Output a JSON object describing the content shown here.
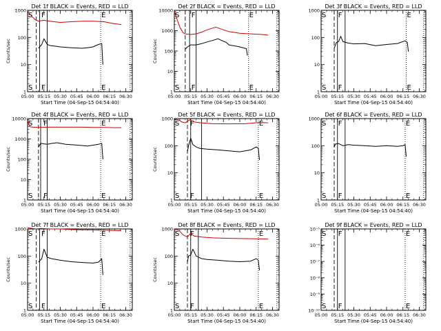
{
  "figure": {
    "background": "#ffffff",
    "ink_color": "#000000",
    "lld_color": "#cc0000"
  },
  "chart_data": [
    {
      "type": "line",
      "title": "Det 1f BLACK = Events, RED = LLD",
      "ylabel": "Counts/sec",
      "xlabel": "Start Time (04-Sep-15 04:54:40)",
      "yscale": "log",
      "ylim": [
        1,
        1000
      ],
      "xlim": [
        "05:00",
        "06:36"
      ],
      "x_ticks": [
        "05:00",
        "05:15",
        "05:30",
        "05:45",
        "06:00",
        "06:15",
        "06:30"
      ],
      "y_tick_labels": [
        "1",
        "10",
        "100",
        "1000"
      ],
      "series": [
        {
          "name": "Events",
          "color": "#000000",
          "x": [
            "05:10",
            "05:13",
            "05:15",
            "05:18",
            "05:21",
            "05:25",
            "05:30",
            "05:40",
            "05:50",
            "05:55",
            "06:00",
            "06:05",
            "06:08",
            "06:09"
          ],
          "values": [
            40,
            55,
            90,
            55,
            50,
            48,
            45,
            42,
            40,
            42,
            45,
            55,
            60,
            10
          ]
        },
        {
          "name": "LLD",
          "color": "#cc0000",
          "x": [
            "05:00",
            "05:04",
            "05:07",
            "05:10",
            "05:13",
            "05:15",
            "05:20",
            "05:30",
            "05:40",
            "05:50",
            "06:00",
            "06:10",
            "06:20",
            "06:26"
          ],
          "values": [
            900,
            600,
            450,
            400,
            420,
            430,
            400,
            360,
            380,
            400,
            400,
            380,
            320,
            300
          ]
        }
      ],
      "vlines": [
        {
          "x": "05:08",
          "style": "long-dash"
        },
        {
          "x": "05:11",
          "style": "solid"
        },
        {
          "x": "05:18",
          "style": "solid"
        },
        {
          "x": "06:07",
          "style": "dotted"
        },
        {
          "x": "06:34",
          "style": "dotted"
        }
      ],
      "markers": [
        {
          "label": "S",
          "x": "05:00"
        },
        {
          "label": "F",
          "x": "05:12"
        },
        {
          "label": "E",
          "x": "06:07"
        }
      ]
    },
    {
      "type": "line",
      "title": "Det 2f BLACK = Events, RED = LLD",
      "ylabel": "Counts/sec",
      "xlabel": "Start Time (04-Sep-15 04:54:40)",
      "yscale": "log",
      "ylim": [
        1,
        10000
      ],
      "xlim": [
        "05:00",
        "06:36"
      ],
      "x_ticks": [
        "05:00",
        "05:15",
        "05:30",
        "05:45",
        "06:00",
        "06:15",
        "06:30"
      ],
      "y_tick_labels": [
        "1",
        "10",
        "100",
        "1000",
        "10000"
      ],
      "series": [
        {
          "name": "Events",
          "color": "#000000",
          "x": [
            "05:10",
            "05:12",
            "05:15",
            "05:20",
            "05:25",
            "05:30",
            "05:35",
            "05:40",
            "05:45",
            "05:48",
            "05:50",
            "05:55",
            "06:00",
            "06:06",
            "06:07"
          ],
          "values": [
            120,
            160,
            200,
            200,
            230,
            280,
            330,
            400,
            300,
            260,
            200,
            180,
            160,
            130,
            60
          ]
        },
        {
          "name": "LLD",
          "color": "#cc0000",
          "x": [
            "05:00",
            "05:03",
            "05:05",
            "05:08",
            "05:10",
            "05:15",
            "05:20",
            "05:25",
            "05:30",
            "05:38",
            "05:45",
            "05:50",
            "06:00",
            "06:10",
            "06:20",
            "06:26"
          ],
          "values": [
            9000,
            3000,
            1500,
            800,
            700,
            650,
            700,
            850,
            1100,
            1500,
            1100,
            900,
            750,
            700,
            650,
            600
          ]
        }
      ],
      "vlines": [
        {
          "x": "05:10",
          "style": "long-dash"
        },
        {
          "x": "05:14",
          "style": "solid"
        },
        {
          "x": "05:20",
          "style": "solid"
        },
        {
          "x": "06:08",
          "style": "dotted"
        },
        {
          "x": "06:34",
          "style": "dotted"
        }
      ],
      "markers": [
        {
          "label": "S",
          "x": "05:00"
        },
        {
          "label": "F",
          "x": "05:15"
        },
        {
          "label": "E",
          "x": "06:08"
        }
      ]
    },
    {
      "type": "line",
      "title": "Det 3f BLACK = Events, RED = LLD",
      "ylabel": "",
      "xlabel": "Start Time (04-Sep-15 04:54:40)",
      "yscale": "log",
      "ylim": [
        1,
        1000
      ],
      "xlim": [
        "05:00",
        "06:36"
      ],
      "x_ticks": [
        "05:00",
        "05:15",
        "05:30",
        "05:45",
        "06:00",
        "06:15",
        "06:30"
      ],
      "y_tick_labels": [
        "1",
        "10",
        "100",
        "1000"
      ],
      "series": [
        {
          "name": "Events",
          "color": "#000000",
          "x": [
            "05:12",
            "05:14",
            "05:16",
            "05:18",
            "05:20",
            "05:25",
            "05:30",
            "05:40",
            "05:50",
            "06:00",
            "06:10",
            "06:17",
            "06:19",
            "06:20"
          ],
          "values": [
            40,
            65,
            70,
            110,
            70,
            62,
            58,
            60,
            50,
            55,
            60,
            75,
            65,
            30
          ]
        }
      ],
      "vlines": [
        {
          "x": "05:12",
          "style": "long-dash"
        },
        {
          "x": "05:15",
          "style": "solid"
        },
        {
          "x": "05:22",
          "style": "solid"
        },
        {
          "x": "06:18",
          "style": "dotted"
        },
        {
          "x": "06:34",
          "style": "dotted"
        }
      ],
      "markers": [
        {
          "label": "S",
          "x": "05:00"
        },
        {
          "label": "F",
          "x": "05:15"
        },
        {
          "label": "E",
          "x": "06:18"
        }
      ]
    },
    {
      "type": "line",
      "title": "Det 4f BLACK = Events, RED = LLD",
      "ylabel": "Counts/sec",
      "xlabel": "Start Time (04-Sep-15 04:54:40)",
      "yscale": "log",
      "ylim": [
        1,
        10000
      ],
      "xlim": [
        "05:00",
        "06:36"
      ],
      "x_ticks": [
        "05:00",
        "05:15",
        "05:30",
        "05:45",
        "06:00",
        "06:15",
        "06:30"
      ],
      "y_tick_labels": [
        "1",
        "10",
        "100",
        "1000",
        "10000"
      ],
      "series": [
        {
          "name": "Events",
          "color": "#000000",
          "x": [
            "05:10",
            "05:12",
            "05:18",
            "05:22",
            "05:27",
            "05:35",
            "05:45",
            "05:55",
            "06:05",
            "06:08",
            "06:09"
          ],
          "values": [
            400,
            600,
            550,
            600,
            650,
            550,
            500,
            450,
            550,
            600,
            100
          ]
        },
        {
          "name": "LLD",
          "color": "#cc0000",
          "x": [
            "05:00",
            "05:02",
            "05:05",
            "05:10",
            "05:20",
            "05:30",
            "05:40",
            "05:50",
            "06:00",
            "06:10",
            "06:20",
            "06:26"
          ],
          "values": [
            8000,
            4000,
            3800,
            3700,
            3800,
            3800,
            3800,
            3800,
            3700,
            3700,
            3600,
            3600
          ]
        }
      ],
      "vlines": [
        {
          "x": "05:10",
          "style": "long-dash"
        },
        {
          "x": "05:12",
          "style": "solid"
        },
        {
          "x": "05:18",
          "style": "solid"
        },
        {
          "x": "06:07",
          "style": "dotted"
        },
        {
          "x": "06:34",
          "style": "dotted"
        }
      ],
      "markers": [
        {
          "label": "S",
          "x": "05:00"
        },
        {
          "label": "F",
          "x": "05:14"
        },
        {
          "label": "E",
          "x": "06:07"
        }
      ]
    },
    {
      "type": "line",
      "title": "Det 5f BLACK = Events, RED = LLD",
      "ylabel": "Counts/sec",
      "xlabel": "Start Time (04-Sep-15 04:54:40)",
      "yscale": "log",
      "ylim": [
        1,
        1000
      ],
      "xlim": [
        "05:00",
        "06:36"
      ],
      "x_ticks": [
        "05:00",
        "05:15",
        "05:30",
        "05:45",
        "06:00",
        "06:15",
        "06:30"
      ],
      "y_tick_labels": [
        "1",
        "10",
        "100",
        "1000"
      ],
      "series": [
        {
          "name": "Events",
          "color": "#000000",
          "x": [
            "05:12",
            "05:13",
            "05:15",
            "05:17",
            "05:20",
            "05:23",
            "05:30",
            "05:40",
            "05:50",
            "06:00",
            "06:10",
            "06:15",
            "06:17",
            "06:18"
          ],
          "values": [
            60,
            100,
            190,
            110,
            90,
            80,
            75,
            70,
            65,
            60,
            70,
            90,
            80,
            30
          ]
        },
        {
          "name": "LLD",
          "color": "#cc0000",
          "x": [
            "05:00",
            "05:04",
            "05:07",
            "05:10",
            "05:14",
            "05:18",
            "05:24",
            "05:35",
            "05:50",
            "06:05",
            "06:18",
            "06:26"
          ],
          "values": [
            950,
            900,
            750,
            700,
            900,
            760,
            700,
            650,
            640,
            650,
            720,
            700
          ]
        }
      ],
      "vlines": [
        {
          "x": "05:12",
          "style": "long-dash"
        },
        {
          "x": "05:15",
          "style": "solid"
        },
        {
          "x": "05:25",
          "style": "solid"
        },
        {
          "x": "06:17",
          "style": "dotted"
        },
        {
          "x": "06:34",
          "style": "dotted"
        }
      ],
      "markers": [
        {
          "label": "S",
          "x": "05:00"
        },
        {
          "label": "F",
          "x": "05:14"
        },
        {
          "label": "E",
          "x": "06:17"
        }
      ]
    },
    {
      "type": "line",
      "title": "Det 6f BLACK = Events, RED = LLD",
      "ylabel": "",
      "xlabel": "Start Time (04-Sep-15 04:54:40)",
      "yscale": "log",
      "ylim": [
        1,
        1000
      ],
      "xlim": [
        "05:00",
        "06:36"
      ],
      "x_ticks": [
        "05:00",
        "05:15",
        "05:30",
        "05:45",
        "06:00",
        "06:15",
        "06:30"
      ],
      "y_tick_labels": [
        "1",
        "10",
        "100",
        "1000"
      ],
      "series": [
        {
          "name": "Events",
          "color": "#000000",
          "x": [
            "05:12",
            "05:13",
            "05:16",
            "05:20",
            "05:25",
            "05:30",
            "05:40",
            "05:50",
            "06:00",
            "06:10",
            "06:15",
            "06:17",
            "06:18"
          ],
          "values": [
            90,
            115,
            120,
            100,
            110,
            105,
            100,
            95,
            100,
            95,
            100,
            110,
            40
          ]
        }
      ],
      "vlines": [
        {
          "x": "05:12",
          "style": "long-dash"
        },
        {
          "x": "05:15",
          "style": "solid"
        },
        {
          "x": "05:22",
          "style": "solid"
        },
        {
          "x": "06:17",
          "style": "dotted"
        },
        {
          "x": "06:34",
          "style": "dotted"
        }
      ],
      "markers": [
        {
          "label": "S",
          "x": "05:00"
        },
        {
          "label": "F",
          "x": "05:15"
        },
        {
          "label": "E",
          "x": "06:17"
        }
      ]
    },
    {
      "type": "line",
      "title": "Det 7f BLACK = Events, RED = LLD",
      "ylabel": "Counts/sec",
      "xlabel": "Start Time (04-Sep-15 04:54:40)",
      "yscale": "log",
      "ylim": [
        1,
        1000
      ],
      "xlim": [
        "05:00",
        "06:36"
      ],
      "x_ticks": [
        "05:00",
        "05:15",
        "05:30",
        "05:45",
        "06:00",
        "06:15",
        "06:30"
      ],
      "y_tick_labels": [
        "1",
        "10",
        "100",
        "1000"
      ],
      "series": [
        {
          "name": "Events",
          "color": "#000000",
          "x": [
            "05:10",
            "05:13",
            "05:15",
            "05:18",
            "05:22",
            "05:30",
            "05:40",
            "05:50",
            "06:00",
            "06:05",
            "06:08",
            "06:09"
          ],
          "values": [
            60,
            80,
            180,
            90,
            80,
            70,
            62,
            58,
            55,
            60,
            80,
            20
          ]
        },
        {
          "name": "LLD",
          "color": "#cc0000",
          "x": [
            "05:00",
            "05:04",
            "05:08",
            "05:12",
            "05:20",
            "05:30",
            "05:40",
            "05:50",
            "06:00",
            "06:10",
            "06:20",
            "06:26"
          ],
          "values": [
            1100,
            1050,
            1000,
            1050,
            1000,
            1000,
            950,
            930,
            920,
            900,
            880,
            860
          ]
        }
      ],
      "vlines": [
        {
          "x": "05:08",
          "style": "long-dash"
        },
        {
          "x": "05:11",
          "style": "solid"
        },
        {
          "x": "05:18",
          "style": "solid"
        },
        {
          "x": "06:07",
          "style": "dotted"
        },
        {
          "x": "06:34",
          "style": "dotted"
        }
      ],
      "markers": [
        {
          "label": "S",
          "x": "05:00"
        },
        {
          "label": "F",
          "x": "05:12"
        },
        {
          "label": "E",
          "x": "06:07"
        }
      ]
    },
    {
      "type": "line",
      "title": "Det 8f BLACK = Events, RED = LLD",
      "ylabel": "Counts/sec",
      "xlabel": "Start Time (04-Sep-15 04:54:40)",
      "yscale": "log",
      "ylim": [
        1,
        1000
      ],
      "xlim": [
        "05:00",
        "06:36"
      ],
      "x_ticks": [
        "05:00",
        "05:15",
        "05:30",
        "05:45",
        "06:00",
        "06:15",
        "06:30"
      ],
      "y_tick_labels": [
        "1",
        "10",
        "100",
        "1000"
      ],
      "series": [
        {
          "name": "Events",
          "color": "#000000",
          "x": [
            "05:12",
            "05:13",
            "05:15",
            "05:17",
            "05:20",
            "05:25",
            "05:30",
            "05:40",
            "05:50",
            "06:00",
            "06:10",
            "06:15",
            "06:17",
            "06:18"
          ],
          "values": [
            60,
            100,
            110,
            180,
            100,
            80,
            75,
            70,
            65,
            62,
            65,
            80,
            70,
            30
          ]
        },
        {
          "name": "LLD",
          "color": "#cc0000",
          "x": [
            "05:00",
            "05:04",
            "05:08",
            "05:12",
            "05:15",
            "05:18",
            "05:25",
            "05:35",
            "05:50",
            "06:05",
            "06:18",
            "06:26"
          ],
          "values": [
            1000,
            900,
            600,
            500,
            700,
            550,
            500,
            470,
            450,
            440,
            430,
            420
          ]
        }
      ],
      "vlines": [
        {
          "x": "05:12",
          "style": "long-dash"
        },
        {
          "x": "05:15",
          "style": "solid"
        },
        {
          "x": "05:22",
          "style": "solid"
        },
        {
          "x": "06:17",
          "style": "dotted"
        },
        {
          "x": "06:34",
          "style": "dotted"
        }
      ],
      "markers": [
        {
          "label": "S",
          "x": "05:00"
        },
        {
          "label": "F",
          "x": "05:14"
        },
        {
          "label": "E",
          "x": "06:17"
        }
      ]
    },
    {
      "type": "line",
      "title": "Det 9f BLACK = Events, RED = LLD",
      "ylabel": "",
      "xlabel": "Start Time (04-Sep-15 04:54:40)",
      "yscale": "log",
      "ylim": [
        1e-10,
        1e-05
      ],
      "xlim": [
        "05:00",
        "06:36"
      ],
      "x_ticks": [
        "05:00",
        "05:15",
        "05:30",
        "05:45",
        "06:00",
        "06:15",
        "06:30"
      ],
      "y_tick_labels": [
        "10⁻¹⁰",
        "10⁻⁹",
        "10⁻⁸",
        "10⁻⁷",
        "10⁻⁶",
        "10⁻⁵"
      ],
      "series": [],
      "vlines": [
        {
          "x": "05:12",
          "style": "long-dash"
        },
        {
          "x": "05:15",
          "style": "solid"
        },
        {
          "x": "05:22",
          "style": "solid"
        },
        {
          "x": "06:17",
          "style": "dotted"
        },
        {
          "x": "06:34",
          "style": "dotted"
        }
      ],
      "markers": [
        {
          "label": "S",
          "x": "05:00"
        },
        {
          "label": "F",
          "x": "05:15"
        },
        {
          "label": "E",
          "x": "06:17"
        }
      ]
    }
  ]
}
